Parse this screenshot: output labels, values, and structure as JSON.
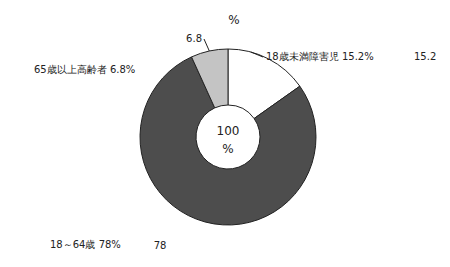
{
  "chart_data": {
    "type": "pie",
    "title": "%",
    "categories": [
      "18歳未満障害児 15.2%",
      "18～64歳 78%",
      "65歳以上高齢者 6.8%"
    ],
    "values": [
      15.2,
      78,
      6.8
    ],
    "colors": [
      "#ffffff",
      "#4d4d4d",
      "#c4c4c4"
    ],
    "data_labels": true,
    "center_text": [
      "100",
      "%"
    ]
  }
}
